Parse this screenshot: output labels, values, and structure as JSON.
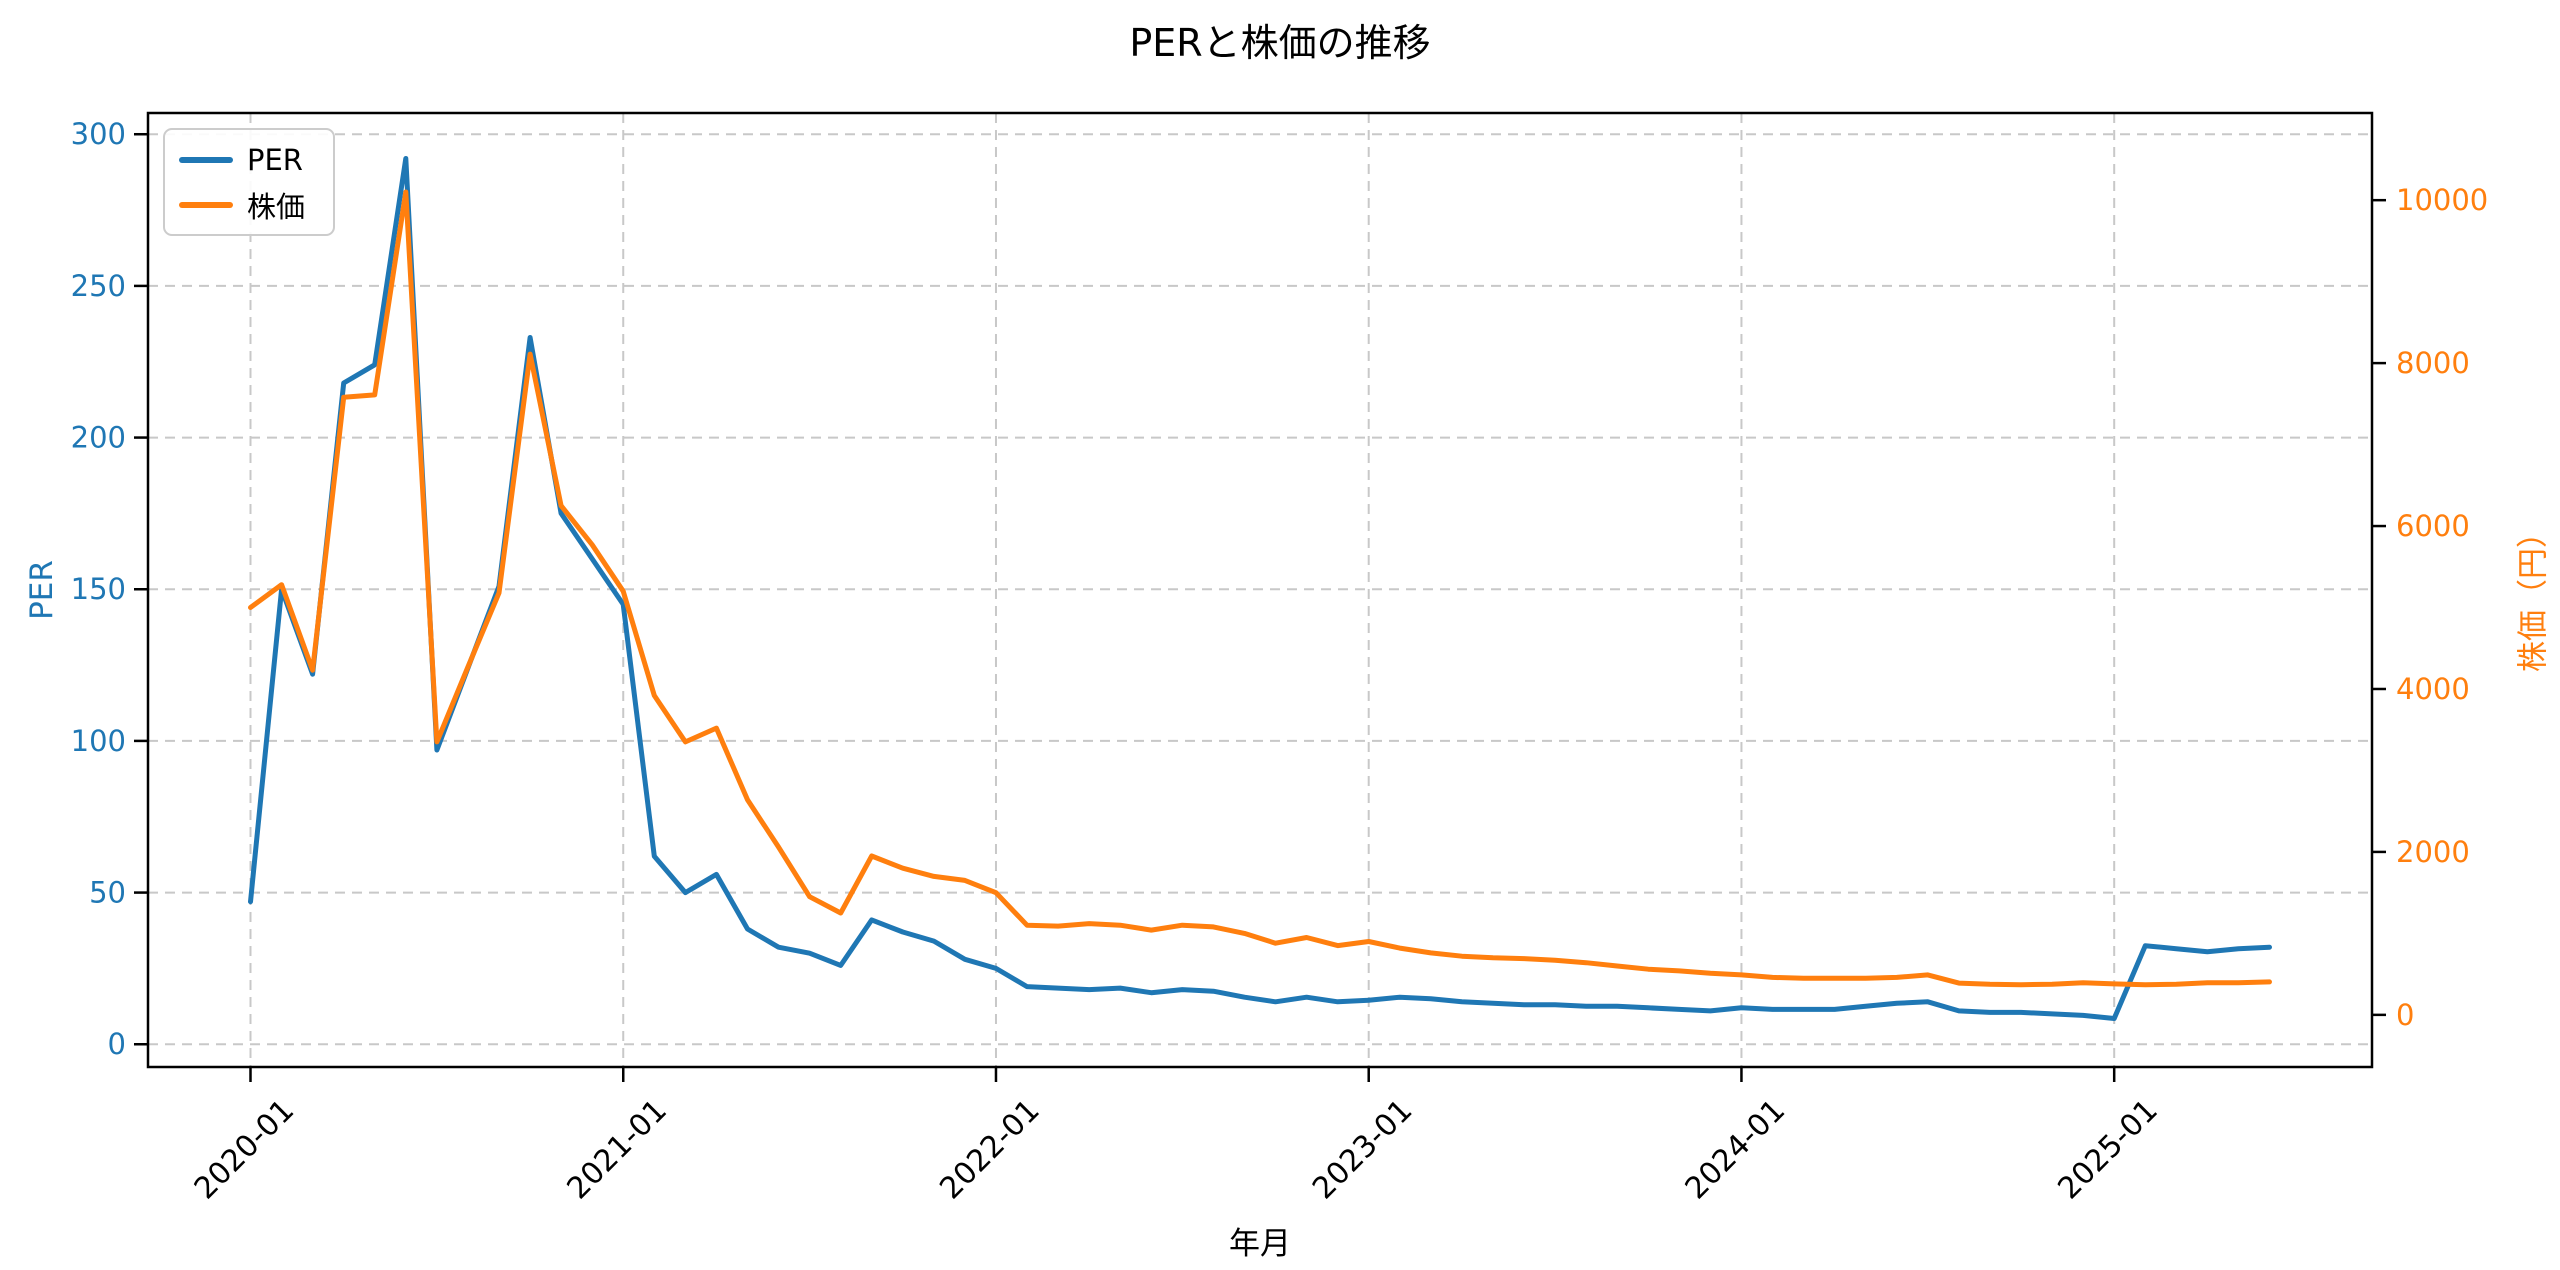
{
  "title": "PERと株価の推移",
  "xlabel": "年月",
  "left_axis": {
    "label": "PER",
    "color": "#1f77b4",
    "ticks": [
      0,
      50,
      100,
      150,
      200,
      250,
      300
    ]
  },
  "right_axis": {
    "label": "株価（円）",
    "color": "#ff7f0e",
    "ticks": [
      0,
      2000,
      4000,
      6000,
      8000,
      10000
    ]
  },
  "x_ticks": [
    "2020-01",
    "2021-01",
    "2022-01",
    "2023-01",
    "2024-01",
    "2025-01"
  ],
  "legend": {
    "items": [
      {
        "label": "PER",
        "color": "#1f77b4"
      },
      {
        "label": "株価",
        "color": "#ff7f0e"
      }
    ]
  },
  "colors": {
    "grid": "#c8c8c8",
    "spine": "#000000",
    "x_tick_label": "#000000",
    "background": "#ffffff"
  },
  "chart_data": {
    "type": "line",
    "title": "PERと株価の推移",
    "xlabel": "年月",
    "ylabel_left": "PER",
    "ylabel_right": "株価（円）",
    "grid": true,
    "grid_style": "dashed",
    "legend_position": "upper left",
    "x": [
      "2020-01",
      "2020-02",
      "2020-03",
      "2020-04",
      "2020-05",
      "2020-06",
      "2020-07",
      "2020-08",
      "2020-09",
      "2020-10",
      "2020-11",
      "2020-12",
      "2021-01",
      "2021-02",
      "2021-03",
      "2021-04",
      "2021-05",
      "2021-06",
      "2021-07",
      "2021-08",
      "2021-09",
      "2021-10",
      "2021-11",
      "2021-12",
      "2022-01",
      "2022-02",
      "2022-03",
      "2022-04",
      "2022-05",
      "2022-06",
      "2022-07",
      "2022-08",
      "2022-09",
      "2022-10",
      "2022-11",
      "2022-12",
      "2023-01",
      "2023-02",
      "2023-03",
      "2023-04",
      "2023-05",
      "2023-06",
      "2023-07",
      "2023-08",
      "2023-09",
      "2023-10",
      "2023-11",
      "2023-12",
      "2024-01",
      "2024-02",
      "2024-03",
      "2024-04",
      "2024-05",
      "2024-06",
      "2024-07",
      "2024-08",
      "2024-09",
      "2024-10",
      "2024-11",
      "2024-12",
      "2025-01",
      "2025-02",
      "2025-03",
      "2025-04",
      "2025-05",
      "2025-06"
    ],
    "series": [
      {
        "name": "PER",
        "axis": "left",
        "color": "#1f77b4",
        "values": [
          47,
          150,
          122,
          218,
          224,
          292,
          97,
          124,
          151,
          233,
          175,
          160,
          145,
          62,
          50,
          56,
          38,
          32,
          30,
          26,
          41,
          37,
          34,
          28,
          25,
          19,
          18.5,
          18,
          18.5,
          17,
          18,
          17.5,
          15.5,
          14,
          15.5,
          14,
          14.5,
          15.5,
          15,
          14,
          13.5,
          13,
          13,
          12.5,
          12.5,
          12,
          11.5,
          11,
          12,
          11.5,
          11.5,
          11.5,
          12.5,
          13.5,
          14,
          11,
          10.5,
          10.5,
          10,
          9.5,
          8.5,
          32.5,
          31.5,
          30.5,
          31.5,
          32
        ]
      },
      {
        "name": "株価",
        "axis": "right",
        "color": "#ff7f0e",
        "values": [
          5000,
          5280,
          4230,
          7580,
          7610,
          10100,
          3350,
          4270,
          5180,
          8110,
          6250,
          5770,
          5200,
          3920,
          3350,
          3520,
          2640,
          2060,
          1450,
          1250,
          1950,
          1800,
          1700,
          1650,
          1500,
          1100,
          1090,
          1120,
          1100,
          1040,
          1100,
          1080,
          1000,
          880,
          950,
          850,
          900,
          820,
          760,
          720,
          700,
          690,
          670,
          640,
          600,
          560,
          540,
          510,
          490,
          460,
          450,
          450,
          450,
          460,
          490,
          390,
          375,
          370,
          375,
          395,
          380,
          370,
          375,
          395,
          395,
          405
        ]
      }
    ],
    "left_ylim": [
      -7.5,
      307
    ],
    "right_ylim": [
      -640,
      11070
    ],
    "x_axis_range_note": "monthly data 2020-01 through 2025-06"
  }
}
